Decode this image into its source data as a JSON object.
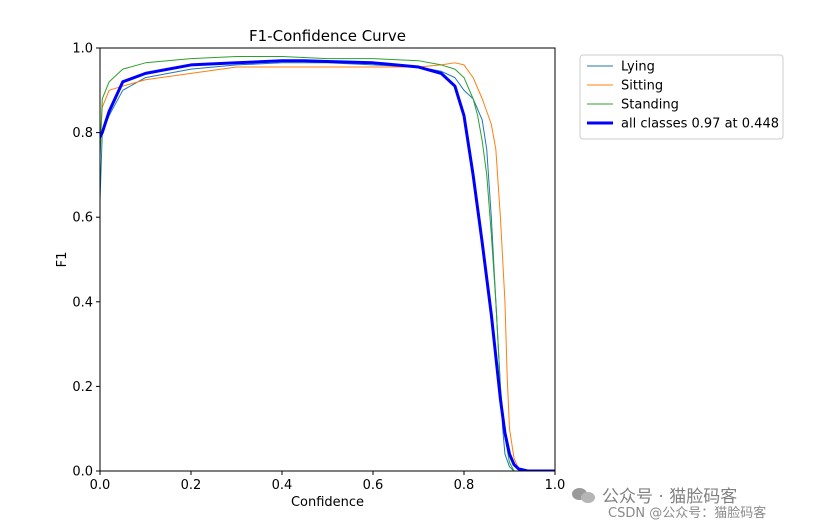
{
  "chart_data": {
    "type": "line",
    "title": "F1-Confidence Curve",
    "xlabel": "Confidence",
    "ylabel": "F1",
    "xlim": [
      0,
      1
    ],
    "ylim": [
      0,
      1
    ],
    "xticks": [
      "0.0",
      "0.2",
      "0.4",
      "0.6",
      "0.8",
      "1.0"
    ],
    "yticks": [
      "0.0",
      "0.2",
      "0.4",
      "0.6",
      "0.8",
      "1.0"
    ],
    "grid": false,
    "legend_position": "outside-top-right",
    "series": [
      {
        "name": "Lying",
        "color": "#1f77b4",
        "width": 1,
        "x": [
          0.0,
          0.005,
          0.02,
          0.05,
          0.1,
          0.2,
          0.3,
          0.4,
          0.5,
          0.6,
          0.7,
          0.75,
          0.78,
          0.8,
          0.82,
          0.84,
          0.85,
          0.86,
          0.87,
          0.88,
          0.885,
          0.89,
          0.9,
          0.91,
          0.92
        ],
        "y": [
          0.64,
          0.8,
          0.84,
          0.9,
          0.93,
          0.95,
          0.96,
          0.965,
          0.965,
          0.96,
          0.955,
          0.945,
          0.93,
          0.9,
          0.88,
          0.83,
          0.76,
          0.6,
          0.4,
          0.2,
          0.1,
          0.04,
          0.01,
          0.0,
          0.0
        ]
      },
      {
        "name": "Sitting",
        "color": "#ff7f0e",
        "width": 1,
        "x": [
          0.0,
          0.005,
          0.02,
          0.05,
          0.1,
          0.2,
          0.3,
          0.4,
          0.5,
          0.6,
          0.7,
          0.75,
          0.78,
          0.8,
          0.82,
          0.84,
          0.86,
          0.87,
          0.88,
          0.89,
          0.895,
          0.9,
          0.91,
          0.92,
          0.93
        ],
        "y": [
          0.77,
          0.86,
          0.9,
          0.91,
          0.925,
          0.94,
          0.955,
          0.955,
          0.955,
          0.955,
          0.955,
          0.96,
          0.965,
          0.96,
          0.93,
          0.88,
          0.82,
          0.76,
          0.6,
          0.4,
          0.22,
          0.1,
          0.03,
          0.005,
          0.0
        ]
      },
      {
        "name": "Standing",
        "color": "#2ca02c",
        "width": 1,
        "x": [
          0.0,
          0.005,
          0.02,
          0.05,
          0.1,
          0.2,
          0.3,
          0.4,
          0.5,
          0.6,
          0.7,
          0.75,
          0.78,
          0.8,
          0.82,
          0.83,
          0.84,
          0.85,
          0.86,
          0.87,
          0.875,
          0.88,
          0.89,
          0.9,
          0.91
        ],
        "y": [
          0.74,
          0.88,
          0.92,
          0.95,
          0.965,
          0.975,
          0.98,
          0.98,
          0.975,
          0.975,
          0.97,
          0.96,
          0.95,
          0.93,
          0.88,
          0.84,
          0.78,
          0.7,
          0.56,
          0.4,
          0.3,
          0.2,
          0.08,
          0.02,
          0.0
        ]
      },
      {
        "name": "all classes 0.97 at 0.448",
        "color": "#0000ff",
        "width": 3,
        "x": [
          0.0,
          0.005,
          0.02,
          0.05,
          0.1,
          0.2,
          0.3,
          0.4,
          0.448,
          0.5,
          0.6,
          0.7,
          0.75,
          0.78,
          0.8,
          0.82,
          0.84,
          0.86,
          0.87,
          0.88,
          0.89,
          0.9,
          0.91,
          0.92,
          0.94,
          0.96,
          1.0
        ],
        "y": [
          0.79,
          0.8,
          0.85,
          0.92,
          0.94,
          0.96,
          0.965,
          0.97,
          0.97,
          0.968,
          0.965,
          0.955,
          0.94,
          0.91,
          0.84,
          0.7,
          0.54,
          0.37,
          0.27,
          0.17,
          0.09,
          0.04,
          0.015,
          0.005,
          0.0,
          0.0,
          0.0
        ]
      }
    ]
  },
  "watermark": {
    "main": "公众号 · 猫脸码客",
    "footer": "CSDN @公众号：猫脸码客"
  }
}
